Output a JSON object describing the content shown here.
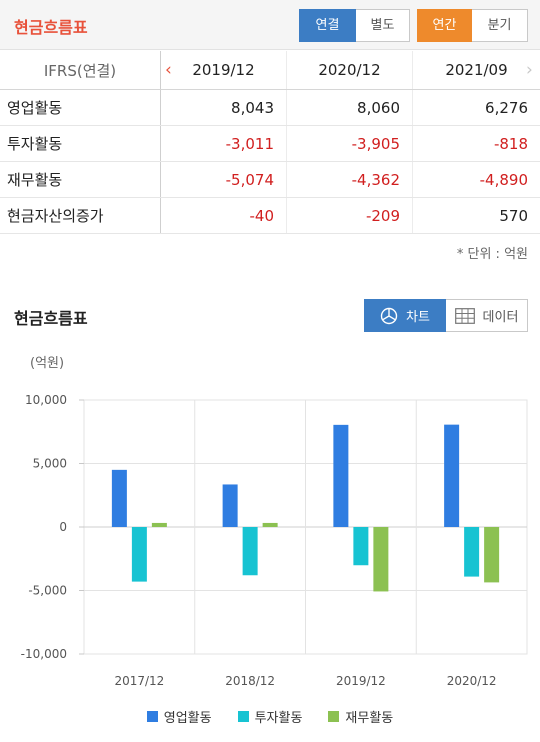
{
  "header": {
    "title": "현금흐름표",
    "consolidation": [
      "연결",
      "별도"
    ],
    "period": [
      "연간",
      "분기"
    ]
  },
  "table": {
    "basis": "IFRS(연결)",
    "columns": [
      "2019/12",
      "2020/12",
      "2021/09"
    ],
    "rows": [
      {
        "label": "영업활동",
        "values": [
          "8,043",
          "8,060",
          "6,276"
        ]
      },
      {
        "label": "투자활동",
        "values": [
          "-3,011",
          "-3,905",
          "-818"
        ]
      },
      {
        "label": "재무활동",
        "values": [
          "-5,074",
          "-4,362",
          "-4,890"
        ]
      },
      {
        "label": "현금자산의증가",
        "values": [
          "-40",
          "-209",
          "570"
        ]
      }
    ],
    "unit_note": "* 단위 : 억원"
  },
  "chart_section": {
    "title": "현금흐름표",
    "chart_button": "차트",
    "data_button": "데이터",
    "y_unit": "(억원)"
  },
  "colors": {
    "brand_red": "#e8523b",
    "active_blue": "#3c7dc4",
    "active_orange": "#ee8a2c",
    "negative": "#d11f1f"
  },
  "icons": [
    "chevron-left-icon",
    "chevron-right-icon",
    "pie-chart-icon",
    "table-grid-icon"
  ],
  "chart_data": {
    "type": "bar",
    "categories": [
      "2017/12",
      "2018/12",
      "2019/12",
      "2020/12"
    ],
    "series": [
      {
        "name": "영업활동",
        "color": "#2f7de1",
        "values": [
          4500,
          3350,
          8043,
          8060
        ]
      },
      {
        "name": "투자활동",
        "color": "#17c3d2",
        "values": [
          -4300,
          -3800,
          -3011,
          -3905
        ]
      },
      {
        "name": "재무활동",
        "color": "#8cc152",
        "values": [
          320,
          320,
          -5074,
          -4362
        ]
      }
    ],
    "ylim": [
      -10000,
      10000
    ],
    "yticks": [
      10000,
      5000,
      0,
      -5000,
      -10000
    ],
    "ytick_labels": [
      "10,000",
      "5,000",
      "0",
      "-5,000",
      "-10,000"
    ],
    "grid": true,
    "legend": "bottom"
  }
}
